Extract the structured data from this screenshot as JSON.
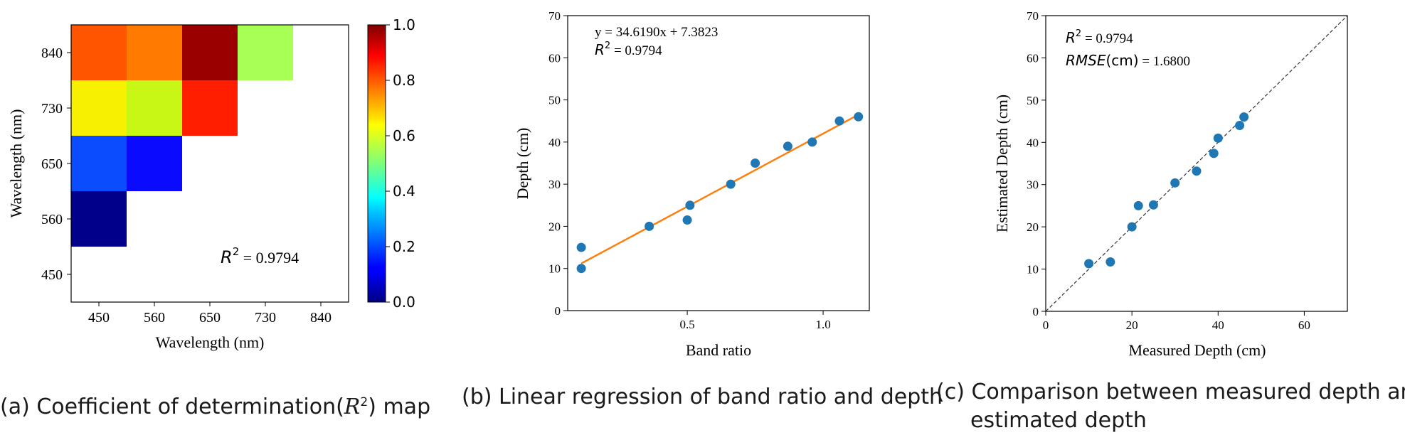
{
  "chart_data": [
    {
      "type": "heatmap",
      "panel": "a",
      "xlabel": "Wavelength (nm)",
      "ylabel": "Wavelength (nm)",
      "x_ticks": [
        "450",
        "560",
        "650",
        "730",
        "840"
      ],
      "y_ticks": [
        "840",
        "730",
        "650",
        "560",
        "450"
      ],
      "cells": [
        {
          "x": "450",
          "y": "560",
          "value": 0.0,
          "color": "#00008b"
        },
        {
          "x": "450",
          "y": "650",
          "value": 0.18,
          "color": "#0b4cff"
        },
        {
          "x": "560",
          "y": "650",
          "value": 0.12,
          "color": "#0a0aff"
        },
        {
          "x": "450",
          "y": "730",
          "value": 0.68,
          "color": "#f7f000"
        },
        {
          "x": "560",
          "y": "730",
          "value": 0.62,
          "color": "#c8f716"
        },
        {
          "x": "650",
          "y": "730",
          "value": 0.92,
          "color": "#ff1e00"
        },
        {
          "x": "450",
          "y": "840",
          "value": 0.83,
          "color": "#ff5400"
        },
        {
          "x": "560",
          "y": "840",
          "value": 0.78,
          "color": "#ff7a00"
        },
        {
          "x": "650",
          "y": "840",
          "value": 1.0,
          "color": "#9a0000"
        },
        {
          "x": "730",
          "y": "840",
          "value": 0.55,
          "color": "#a8ff55"
        }
      ],
      "colorbar": {
        "min": 0.0,
        "max": 1.0,
        "ticks": [
          "0.0",
          "0.2",
          "0.4",
          "0.6",
          "0.8",
          "1.0"
        ]
      },
      "annotation": {
        "r2_label": "R",
        "r2_exp": "2",
        "r2_value": " = 0.9794"
      }
    },
    {
      "type": "scatter",
      "panel": "b",
      "xlabel": "Band ratio",
      "ylabel": "Depth (cm)",
      "xlim": [
        0.06,
        1.17
      ],
      "ylim": [
        0,
        70
      ],
      "x_ticks": [
        "0.5",
        "1.0"
      ],
      "y_ticks": [
        "0",
        "10",
        "20",
        "30",
        "40",
        "50",
        "60",
        "70"
      ],
      "points": [
        {
          "x": 0.11,
          "y": 10
        },
        {
          "x": 0.11,
          "y": 15
        },
        {
          "x": 0.36,
          "y": 20
        },
        {
          "x": 0.5,
          "y": 21.5
        },
        {
          "x": 0.51,
          "y": 25
        },
        {
          "x": 0.66,
          "y": 30
        },
        {
          "x": 0.75,
          "y": 35
        },
        {
          "x": 0.87,
          "y": 39
        },
        {
          "x": 0.96,
          "y": 40
        },
        {
          "x": 1.06,
          "y": 45
        },
        {
          "x": 1.13,
          "y": 46
        }
      ],
      "fit_line": {
        "slope": 34.619,
        "intercept": 7.3823,
        "x_range": [
          0.11,
          1.13
        ],
        "color": "#ff7f0e"
      },
      "point_color": "#1f77b4",
      "equation": "y = 34.6190x + 7.3823",
      "annotation": {
        "r2_label": "R",
        "r2_exp": "2",
        "r2_value": " = 0.9794"
      }
    },
    {
      "type": "scatter",
      "panel": "c",
      "xlabel": "Measured Depth (cm)",
      "ylabel": "Estimated Depth (cm)",
      "xlim": [
        0,
        70
      ],
      "ylim": [
        0,
        70
      ],
      "x_ticks": [
        "0",
        "20",
        "40",
        "60"
      ],
      "y_ticks": [
        "0",
        "10",
        "20",
        "30",
        "40",
        "50",
        "60",
        "70"
      ],
      "points": [
        {
          "x": 10,
          "y": 11.3
        },
        {
          "x": 15,
          "y": 11.7
        },
        {
          "x": 20,
          "y": 20
        },
        {
          "x": 21.5,
          "y": 25
        },
        {
          "x": 25,
          "y": 25.2
        },
        {
          "x": 30,
          "y": 30.4
        },
        {
          "x": 35,
          "y": 33.2
        },
        {
          "x": 39,
          "y": 37.4
        },
        {
          "x": 40,
          "y": 41
        },
        {
          "x": 45,
          "y": 44
        },
        {
          "x": 46,
          "y": 46
        }
      ],
      "identity_line": true,
      "point_color": "#1f77b4",
      "annotation": {
        "r2_label": "R",
        "r2_exp": "2",
        "r2_value": " = 0.9794",
        "rmse_label": "RMSE",
        "rmse_unit": "(cm)",
        "rmse_value": " = 1.6800"
      }
    }
  ],
  "captions": {
    "a_prefix": "(a) Coefficient of determination(",
    "a_symbol": "R",
    "a_exp": "2",
    "a_suffix": ") map",
    "b": "(b) Linear regression of band ratio and depth",
    "c_line1": "(c) Comparison between measured depth and",
    "c_line2": "estimated depth"
  }
}
